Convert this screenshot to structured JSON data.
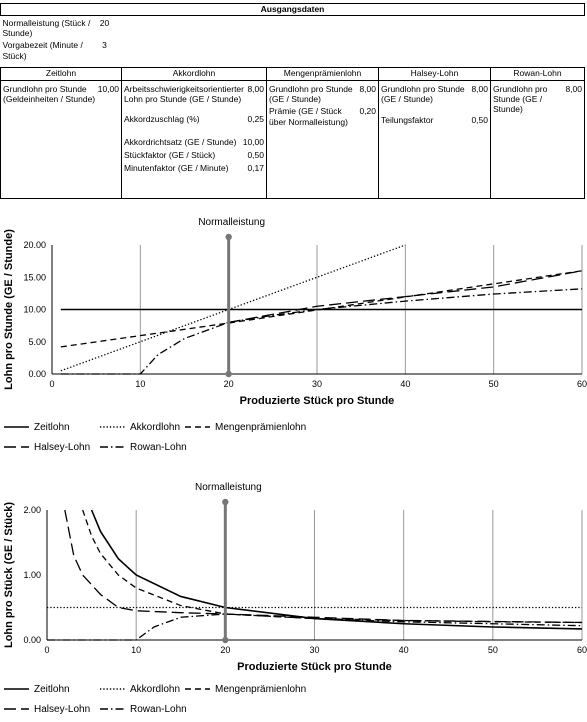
{
  "inputs": {
    "title": "Ausgangsdaten",
    "params": [
      {
        "label": "Normalleistung (Stück / Stunde)",
        "value": "20"
      },
      {
        "label": "Vorgabezeit (Minute / Stück)",
        "value": "3"
      }
    ]
  },
  "wage_table": {
    "headers": [
      "Zeitlohn",
      "Akkordlohn",
      "Mengenprämienlohn",
      "Halsey-Lohn",
      "Rowan-Lohn"
    ],
    "cols": [
      [
        {
          "label": "Grundlohn pro Stunde (Geldeinheiten / Stunde)",
          "value": "10,00"
        }
      ],
      [
        {
          "label": "Arbeitsschwierigkeitsorientierter Lohn pro Stunde (GE / Stunde)",
          "value": "8,00"
        },
        {
          "label": "Akkordzuschlag (%)",
          "value": "0,25"
        },
        {
          "label": "Akkordrichtsatz (GE / Stunde)",
          "value": "10,00"
        },
        {
          "label": "Stückfaktor (GE / Stück)",
          "value": "0,50"
        },
        {
          "label": "Minutenfaktor (GE / Minute)",
          "value": "0,17"
        }
      ],
      [
        {
          "label": "Grundlohn pro Stunde (GE / Stunde)",
          "value": "8,00"
        },
        {
          "label": "Prämie (GE / Stück über Normalleistung)",
          "value": "0,20"
        }
      ],
      [
        {
          "label": "Grundlohn pro Stunde (GE / Stunde)",
          "value": "8,00"
        },
        {
          "label": "Teilungsfaktor",
          "value": "0,50"
        }
      ],
      [
        {
          "label": "Grundlohn pro Stunde (GE / Stunde)",
          "value": "8,00"
        }
      ]
    ]
  },
  "legend": {
    "row1": [
      "Zeitlohn",
      "Akkordlohn",
      "Mengenprämienlohn"
    ],
    "row2": [
      "Halsey-Lohn",
      "Rowan-Lohn"
    ]
  },
  "chart_data": [
    {
      "type": "line",
      "annotation": "Normalleistung",
      "annotation_x": 20,
      "xlabel": "Produzierte Stück pro Stunde",
      "ylabel": "Lohn pro Stunde (GE / Stunde)",
      "xlim": [
        0,
        60
      ],
      "ylim": [
        0,
        20
      ],
      "xticks": [
        "0",
        "10",
        "20",
        "30",
        "40",
        "50",
        "60"
      ],
      "yticks": [
        "0.00",
        "5.00",
        "10.00",
        "15.00",
        "20.00"
      ],
      "grid": "vertical",
      "series": [
        {
          "name": "Zeitlohn",
          "dash": "solid",
          "x": [
            1,
            60
          ],
          "y": [
            10,
            10
          ]
        },
        {
          "name": "Akkordlohn",
          "dash": "dotted",
          "x": [
            1,
            40
          ],
          "y": [
            0.5,
            20
          ]
        },
        {
          "name": "Mengenprämienlohn",
          "dash": "dashed",
          "x": [
            1,
            20,
            60
          ],
          "y": [
            4.2,
            7.9,
            16.0
          ]
        },
        {
          "name": "Halsey-Lohn",
          "dash": "longdash",
          "x": [
            20,
            30,
            40,
            50,
            60
          ],
          "y": [
            8,
            10.5,
            12.0,
            13.5,
            16.0
          ]
        },
        {
          "name": "Rowan-Lohn",
          "dash": "dashdot",
          "x": [
            1,
            10,
            12,
            15,
            20,
            25,
            30,
            40,
            50,
            60
          ],
          "y": [
            0,
            0,
            3.0,
            5.5,
            8.0,
            9.1,
            10.0,
            11.3,
            12.4,
            13.2
          ]
        }
      ]
    },
    {
      "type": "line",
      "annotation": "Normalleistung",
      "annotation_x": 20,
      "xlabel": "Produzierte Stück pro Stunde",
      "ylabel": "Lohn pro Stück (GE / Stück)",
      "xlim": [
        0,
        60
      ],
      "ylim": [
        0,
        2
      ],
      "xticks": [
        "0",
        "10",
        "20",
        "30",
        "40",
        "50",
        "60"
      ],
      "yticks": [
        "0.00",
        "1.00",
        "2.00"
      ],
      "grid": "vertical",
      "series": [
        {
          "name": "Zeitlohn",
          "dash": "solid",
          "x": [
            5,
            6,
            8,
            10,
            15,
            20,
            30,
            40,
            50,
            60
          ],
          "y": [
            2.0,
            1.67,
            1.25,
            1.0,
            0.67,
            0.5,
            0.33,
            0.25,
            0.2,
            0.17
          ]
        },
        {
          "name": "Akkordlohn",
          "dash": "dotted",
          "x": [
            0,
            60
          ],
          "y": [
            0.5,
            0.5
          ]
        },
        {
          "name": "Mengenprämienlohn",
          "dash": "dashed",
          "x": [
            4,
            5,
            6,
            8,
            10,
            15,
            20,
            30,
            40,
            50,
            60
          ],
          "y": [
            2.0,
            1.6,
            1.33,
            1.0,
            0.8,
            0.53,
            0.4,
            0.33,
            0.3,
            0.28,
            0.27
          ]
        },
        {
          "name": "Halsey-Lohn",
          "dash": "longdash",
          "x": [
            2,
            3,
            4,
            6,
            8,
            10,
            15,
            20,
            30,
            40,
            60
          ],
          "y": [
            2.0,
            1.3,
            1.0,
            0.7,
            0.5,
            0.45,
            0.42,
            0.4,
            0.35,
            0.3,
            0.27
          ]
        },
        {
          "name": "Rowan-Lohn",
          "dash": "dashdot",
          "x": [
            0,
            10,
            12,
            15,
            20,
            30,
            40,
            50,
            60
          ],
          "y": [
            0,
            0,
            0.2,
            0.35,
            0.4,
            0.33,
            0.28,
            0.25,
            0.22
          ]
        }
      ]
    }
  ]
}
